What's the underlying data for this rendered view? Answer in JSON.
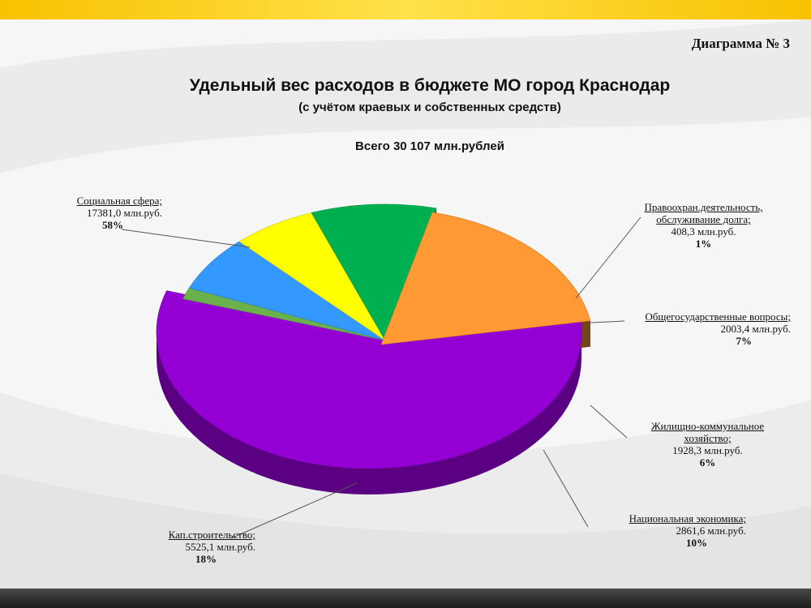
{
  "header": {
    "diagram_number": "Диаграмма № 3",
    "title": "Удельный вес расходов в бюджете МО город Краснодар",
    "subtitle": "(с учётом краевых и собственных средств)",
    "total": "Всего 30 107 млн.рублей"
  },
  "chart_data": {
    "type": "pie",
    "title": "Удельный вес расходов в бюджете МО город Краснодар",
    "subtitle": "(с учётом краевых и собственных средств)",
    "total_label": "Всего 30 107 млн.рублей",
    "slices": [
      {
        "label_lines": [
          "Социальная сфера;"
        ],
        "amount": "17381,0 млн.руб.",
        "percent": "58%",
        "value": 17381.0,
        "color": "#9400d3"
      },
      {
        "label_lines": [
          "Правоохран.деятельность,",
          "обслуживание долга;"
        ],
        "amount": "408,3 млн.руб.",
        "percent": "1%",
        "value": 408.3,
        "color": "#6ab04c"
      },
      {
        "label_lines": [
          "Общегосударственные вопросы;"
        ],
        "amount": "2003,4 млн.руб.",
        "percent": "7%",
        "value": 2003.4,
        "color": "#3399ff"
      },
      {
        "label_lines": [
          "Жилищно-коммунальное",
          "хозяйство;"
        ],
        "amount": "1928,3 млн.руб.",
        "percent": "6%",
        "value": 1928.3,
        "color": "#ffff00"
      },
      {
        "label_lines": [
          "Национальная экономика;"
        ],
        "amount": "2861,6 млн.руб.",
        "percent": "10%",
        "value": 2861.6,
        "color": "#00b050"
      },
      {
        "label_lines": [
          "Кап.строительство;"
        ],
        "amount": "5525,1 млн.руб.",
        "percent": "18%",
        "value": 5525.1,
        "color": "#ff9933"
      }
    ]
  }
}
